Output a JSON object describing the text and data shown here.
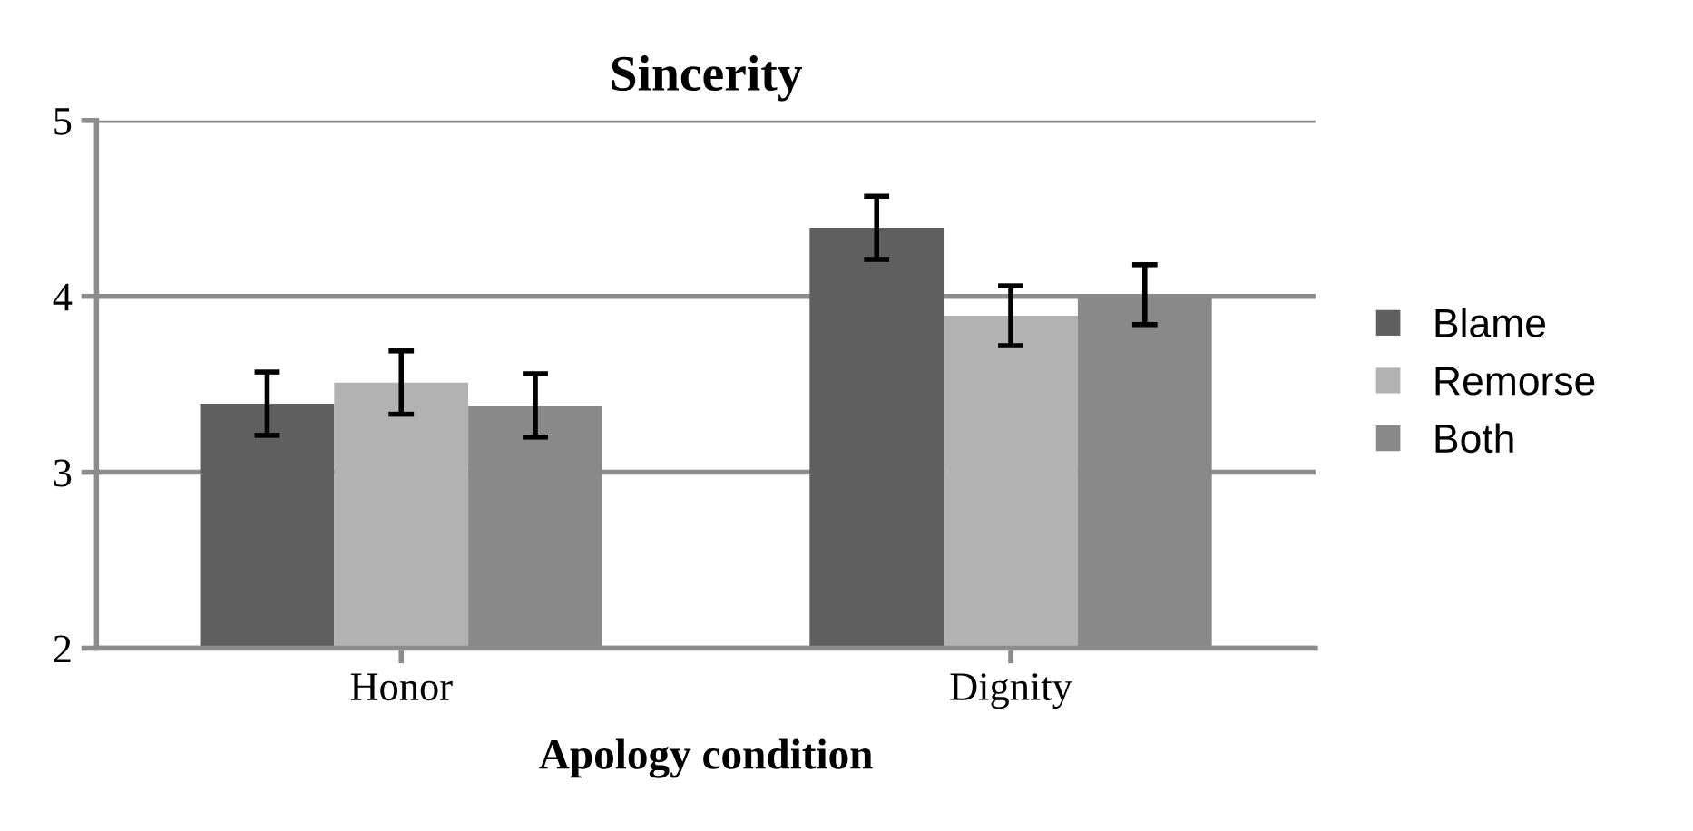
{
  "chart_data": {
    "type": "bar",
    "title": "Sincerity",
    "xlabel": "Apology condition",
    "categories": [
      "Honor",
      "Dignity"
    ],
    "series": [
      {
        "name": "Blame",
        "color": "#5f5f5f",
        "values": [
          3.39,
          4.39
        ],
        "errors": [
          0.18,
          0.18
        ]
      },
      {
        "name": "Remorse",
        "color": "#b2b2b2",
        "values": [
          3.51,
          3.89
        ],
        "errors": [
          0.18,
          0.17
        ]
      },
      {
        "name": "Both",
        "color": "#898989",
        "values": [
          3.38,
          4.01
        ],
        "errors": [
          0.18,
          0.17
        ]
      }
    ],
    "ylim": [
      2,
      5
    ],
    "yticks": [
      2,
      3,
      4,
      5
    ],
    "grid": "y",
    "legend": "right"
  }
}
